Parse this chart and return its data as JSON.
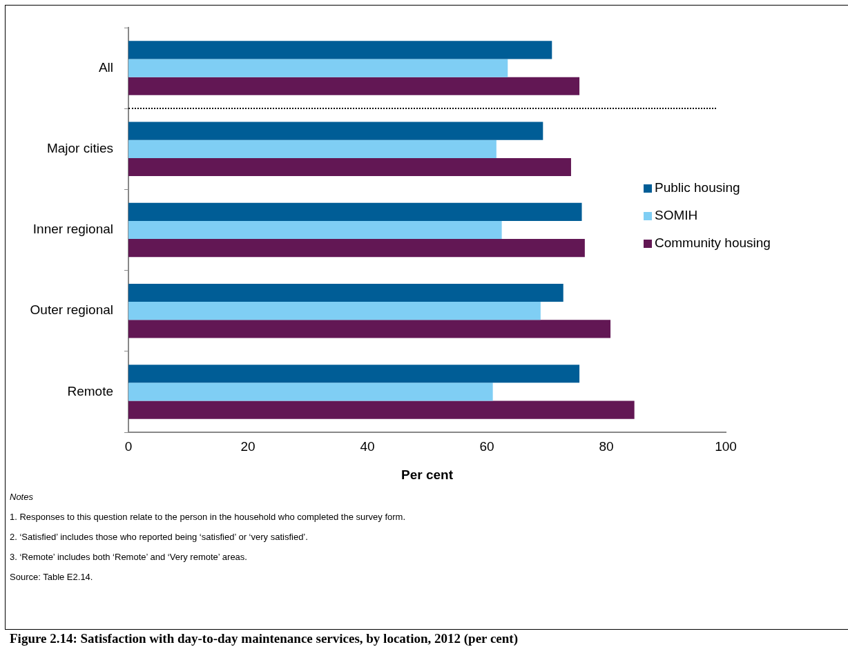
{
  "chart_data": {
    "type": "bar",
    "orientation": "horizontal",
    "title": "Figure 2.14: Satisfaction with day-to-day maintenance services, by location, 2012 (per cent)",
    "xlabel": "Per cent",
    "categories": [
      "All",
      "Major cities",
      "Inner regional",
      "Outer regional",
      "Remote"
    ],
    "series": [
      {
        "name": "Public housing",
        "color": "#005d96",
        "values": [
          70.9,
          69.4,
          75.9,
          72.8,
          75.5
        ]
      },
      {
        "name": "SOMIH",
        "color": "#7fcef4",
        "values": [
          63.5,
          61.6,
          62.5,
          69.0,
          61.0
        ]
      },
      {
        "name": "Community housing",
        "color": "#621754",
        "values": [
          75.5,
          74.1,
          76.4,
          80.7,
          84.7
        ]
      }
    ],
    "xlim": [
      0,
      100
    ],
    "xticks": [
      0,
      20,
      40,
      60,
      80,
      100
    ],
    "grid": false,
    "legend": "right",
    "annotations": [
      "Notes",
      "1. Responses to this question relate to the person in the household who completed the survey form.",
      "2. ‘Satisfied’ includes those who reported being ‘satisfied’ or ‘very satisfied’.",
      "3. ‘Remote’ includes both ‘Remote’ and ‘Very remote’ areas.",
      "Source: Table E2.14."
    ]
  }
}
